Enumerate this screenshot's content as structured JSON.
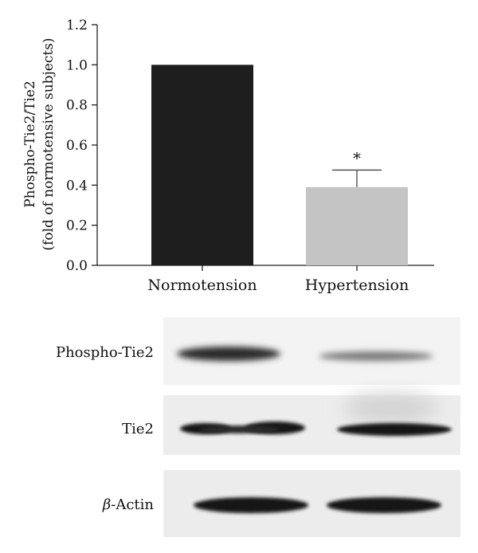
{
  "chart_data": {
    "type": "bar",
    "categories": [
      "Normotension",
      "Hypertension"
    ],
    "values": [
      1.0,
      0.39
    ],
    "error_bars": [
      0,
      0.085
    ],
    "significance": [
      "",
      "*"
    ],
    "bar_colors": [
      "#1e1e1e",
      "#c4c4c4"
    ],
    "ylabel_line1": "Phospho-Tie2/Tie2",
    "ylabel_line2": "(fold of normotensive subjects)",
    "ylim": [
      0,
      1.2
    ],
    "yticks": [
      "0.0",
      "0.2",
      "0.4",
      "0.6",
      "0.8",
      "1.0",
      "1.2"
    ],
    "grid": false,
    "legend": "none"
  },
  "blot": {
    "panels": [
      {
        "label_prefix": "",
        "label": "Phospho-Tie2",
        "band_intensity": [
          0.85,
          0.25
        ]
      },
      {
        "label_prefix": "",
        "label": "Tie2",
        "band_intensity": [
          1.0,
          0.95
        ]
      },
      {
        "label_prefix": "β",
        "label": "-Actin",
        "band_intensity": [
          1.0,
          1.0
        ]
      }
    ]
  }
}
